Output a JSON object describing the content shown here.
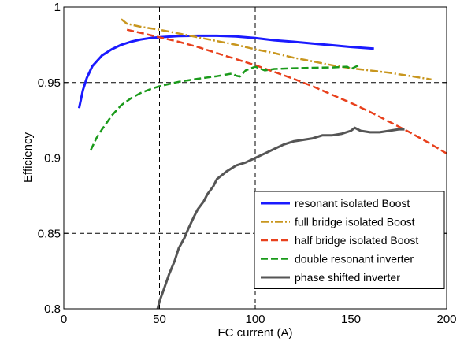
{
  "chart_data": {
    "type": "line",
    "title": "",
    "xlabel": "FC current (A)",
    "ylabel": "Efficiency",
    "xlim": [
      0,
      200
    ],
    "ylim": [
      0.8,
      1.0
    ],
    "x_ticks": [
      0,
      50,
      100,
      150,
      200
    ],
    "x_tick_labels": [
      "0",
      "50",
      "100",
      "150",
      "200"
    ],
    "y_ticks": [
      0.8,
      0.85,
      0.9,
      0.95,
      1.0
    ],
    "y_tick_labels": [
      "0.8",
      "0.85",
      "0.9",
      "0.95",
      "1"
    ],
    "grid": "dashed",
    "legend_position": "bottom-right",
    "series": [
      {
        "name": "resonant isolated Boost",
        "color": "#1a1aff",
        "style": "solid",
        "x": [
          8,
          10,
          12,
          15,
          20,
          25,
          30,
          35,
          40,
          45,
          50,
          60,
          70,
          80,
          90,
          100,
          110,
          120,
          130,
          140,
          150,
          162
        ],
        "y": [
          0.933,
          0.945,
          0.953,
          0.961,
          0.968,
          0.972,
          0.975,
          0.977,
          0.9785,
          0.9795,
          0.98,
          0.9808,
          0.981,
          0.981,
          0.9805,
          0.9795,
          0.978,
          0.977,
          0.9758,
          0.9747,
          0.9736,
          0.9725
        ]
      },
      {
        "name": "full bridge isolated Boost",
        "color": "#c8961e",
        "style": "dashdot",
        "x": [
          30,
          33,
          40,
          50,
          60,
          70,
          80,
          90,
          100,
          110,
          120,
          130,
          140,
          150,
          160,
          170,
          180,
          192
        ],
        "y": [
          0.992,
          0.989,
          0.987,
          0.985,
          0.9825,
          0.98,
          0.9775,
          0.975,
          0.972,
          0.9695,
          0.9665,
          0.964,
          0.9615,
          0.9595,
          0.958,
          0.9565,
          0.9545,
          0.952
        ]
      },
      {
        "name": "half bridge isolated Boost",
        "color": "#e8401c",
        "style": "dashed",
        "x": [
          33,
          40,
          50,
          60,
          70,
          80,
          90,
          100,
          110,
          120,
          130,
          140,
          150,
          160,
          170,
          180,
          190,
          200
        ],
        "y": [
          0.985,
          0.983,
          0.98,
          0.977,
          0.9735,
          0.9695,
          0.9655,
          0.9615,
          0.957,
          0.9525,
          0.9475,
          0.942,
          0.9365,
          0.9305,
          0.924,
          0.9175,
          0.9105,
          0.903
        ]
      },
      {
        "name": "double resonant inverter",
        "color": "#1a9a1a",
        "style": "dashed",
        "x": [
          14,
          17,
          20,
          25,
          30,
          35,
          40,
          45,
          50,
          60,
          70,
          80,
          88,
          90,
          92,
          95,
          100,
          105,
          110,
          120,
          130,
          140,
          148,
          150,
          155
        ],
        "y": [
          0.905,
          0.913,
          0.919,
          0.928,
          0.935,
          0.9395,
          0.943,
          0.9455,
          0.9475,
          0.9505,
          0.9525,
          0.9542,
          0.956,
          0.9545,
          0.954,
          0.958,
          0.9605,
          0.958,
          0.959,
          0.9595,
          0.9598,
          0.96,
          0.9605,
          0.959,
          0.962
        ]
      },
      {
        "name": "phase shifted inverter",
        "color": "#555555",
        "style": "solid",
        "x": [
          49,
          50,
          52,
          55,
          58,
          60,
          63,
          65,
          68,
          70,
          73,
          75,
          78,
          80,
          85,
          90,
          95,
          100,
          105,
          110,
          115,
          120,
          125,
          130,
          135,
          140,
          145,
          150,
          152,
          155,
          160,
          165,
          170,
          175,
          178
        ],
        "y": [
          0.8,
          0.805,
          0.812,
          0.823,
          0.832,
          0.84,
          0.847,
          0.853,
          0.861,
          0.866,
          0.871,
          0.876,
          0.881,
          0.886,
          0.891,
          0.895,
          0.897,
          0.9,
          0.903,
          0.906,
          0.909,
          0.911,
          0.912,
          0.913,
          0.915,
          0.915,
          0.916,
          0.918,
          0.92,
          0.918,
          0.917,
          0.917,
          0.918,
          0.919,
          0.919
        ]
      }
    ]
  }
}
